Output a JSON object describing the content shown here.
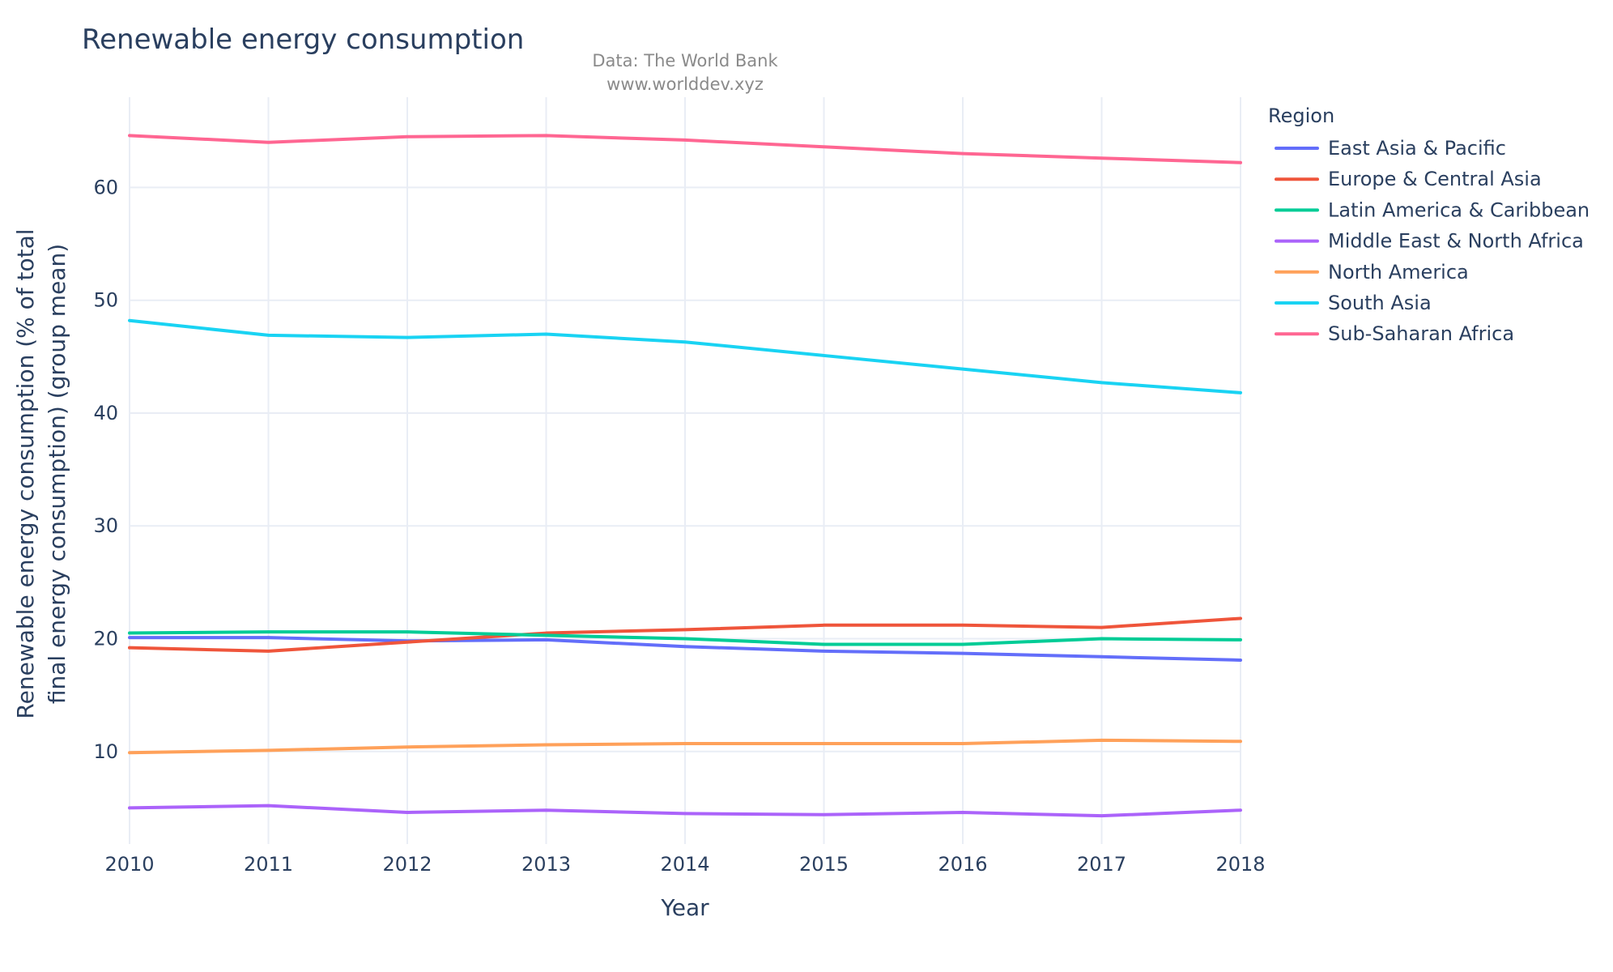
{
  "chart_data": {
    "type": "line",
    "title": "Renewable energy consumption",
    "subtitle_lines": [
      "Data: The World Bank",
      "www.worlddev.xyz"
    ],
    "xlabel": "Year",
    "ylabel_lines": [
      "Renewable energy consumption (% of total",
      "final energy consumption) (group mean)"
    ],
    "legend_title": "Region",
    "legend_position": "right",
    "grid": true,
    "x": [
      2010,
      2011,
      2012,
      2013,
      2014,
      2015,
      2016,
      2017,
      2018
    ],
    "x_ticks": [
      "2010",
      "2011",
      "2012",
      "2013",
      "2014",
      "2015",
      "2016",
      "2017",
      "2018"
    ],
    "y_ticks": [
      "10",
      "20",
      "30",
      "40",
      "50",
      "60"
    ],
    "xlim": [
      2010,
      2018
    ],
    "ylim": [
      1.8,
      68.0
    ],
    "series": [
      {
        "name": "East Asia & Pacific",
        "color": "#636efa",
        "values": [
          20.1,
          20.1,
          19.8,
          19.9,
          19.3,
          18.9,
          18.7,
          18.4,
          18.1
        ]
      },
      {
        "name": "Europe & Central Asia",
        "color": "#ef553b",
        "values": [
          19.2,
          18.9,
          19.7,
          20.5,
          20.8,
          21.2,
          21.2,
          21.0,
          21.8
        ]
      },
      {
        "name": "Latin America & Caribbean",
        "color": "#00cc96",
        "values": [
          20.5,
          20.6,
          20.6,
          20.3,
          20.0,
          19.5,
          19.5,
          20.0,
          19.9
        ]
      },
      {
        "name": "Middle East & North Africa",
        "color": "#ab63fa",
        "values": [
          5.0,
          5.2,
          4.6,
          4.8,
          4.5,
          4.4,
          4.6,
          4.3,
          4.8
        ]
      },
      {
        "name": "North America",
        "color": "#ffa15a",
        "values": [
          9.9,
          10.1,
          10.4,
          10.6,
          10.7,
          10.7,
          10.7,
          11.0,
          10.9
        ]
      },
      {
        "name": "South Asia",
        "color": "#19d3f3",
        "values": [
          48.2,
          46.9,
          46.7,
          47.0,
          46.3,
          45.1,
          43.9,
          42.7,
          41.8
        ]
      },
      {
        "name": "Sub-Saharan Africa",
        "color": "#ff6692",
        "values": [
          64.6,
          64.0,
          64.5,
          64.6,
          64.2,
          63.6,
          63.0,
          62.6,
          62.2
        ]
      }
    ]
  }
}
